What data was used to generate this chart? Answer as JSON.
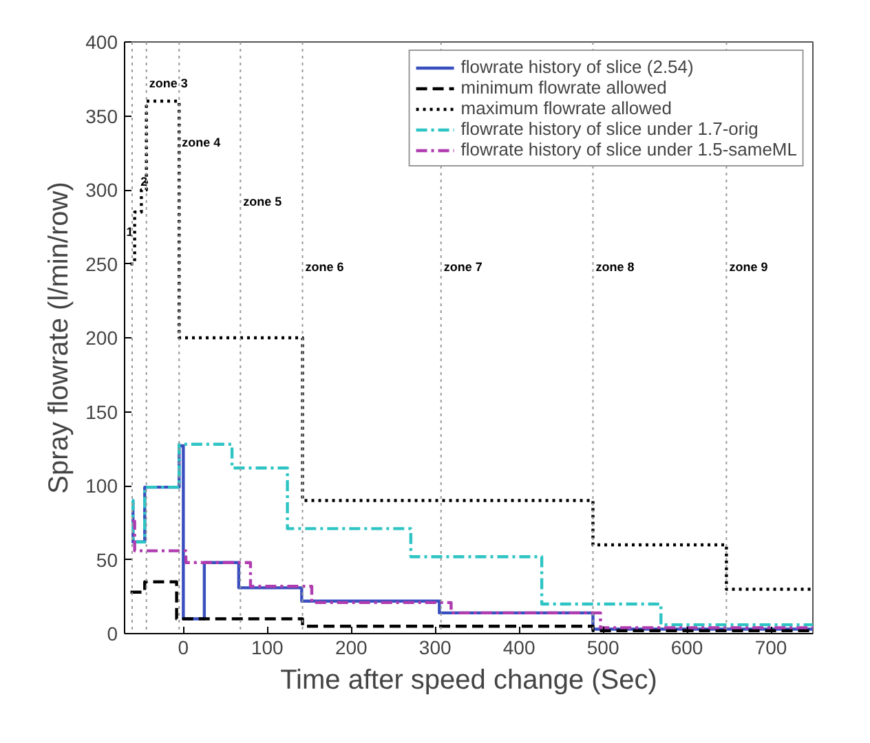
{
  "chart_data": {
    "type": "step",
    "xlabel": "Time after speed change (Sec)",
    "ylabel": "Spray flowrate (l/min/row)",
    "xlim": [
      -70,
      750
    ],
    "ylim": [
      0,
      400
    ],
    "xticks": [
      0,
      100,
      200,
      300,
      400,
      500,
      600,
      700
    ],
    "yticks": [
      0,
      50,
      100,
      150,
      200,
      250,
      300,
      350,
      400
    ],
    "grid": false,
    "legend": "top right",
    "marker": "none",
    "series": [
      {
        "name": "flowrate history of slice (2.54)",
        "color": "#3a4fbf",
        "line_style": "solid",
        "x": [
          -61,
          -60,
          -46,
          -5,
          0,
          25,
          66,
          141,
          305,
          488,
          750
        ],
        "values": [
          90,
          62,
          99,
          127,
          10,
          48,
          31,
          22,
          14,
          3,
          3
        ]
      },
      {
        "name": "minimum flowrate allowed",
        "color": "#000000",
        "line_style": "dashed",
        "x": [
          -63,
          -46,
          -8,
          142,
          488,
          750
        ],
        "values": [
          28,
          35,
          10,
          5,
          2,
          2
        ]
      },
      {
        "name": "maximum flowrate allowed",
        "color": "#000000",
        "line_style": "dotted",
        "x": [
          -63,
          -58,
          -50,
          -44,
          -5,
          142,
          488,
          647,
          750
        ],
        "values": [
          250,
          285,
          300,
          360,
          200,
          90,
          60,
          30,
          30
        ]
      },
      {
        "name": "flowrate history of slice under 1.7-orig",
        "color": "#2ec4c4",
        "line_style": "dashdot",
        "x": [
          -61,
          -60,
          -46,
          -5,
          58,
          124,
          271,
          427,
          569,
          750
        ],
        "values": [
          90,
          62,
          99,
          128,
          112,
          71,
          52,
          20,
          6,
          6
        ]
      },
      {
        "name": "flowrate history of slice under 1.5-sameML",
        "color": "#b03cb0",
        "line_style": "dashdot",
        "x": [
          -61,
          -58,
          3,
          80,
          153,
          319,
          497,
          750
        ],
        "values": [
          76,
          56,
          48,
          32,
          21,
          14,
          4,
          4
        ]
      }
    ],
    "ref_lines": [
      {
        "axis": "x",
        "value": -61,
        "color": "#999999",
        "line_style": "dotted"
      },
      {
        "axis": "x",
        "value": -44,
        "label": "zone 3",
        "color": "#999999",
        "line_style": "dotted"
      },
      {
        "axis": "x",
        "value": -5,
        "label": "zone 4",
        "color": "#999999",
        "line_style": "dotted"
      },
      {
        "axis": "x",
        "value": 68,
        "label": "zone 5",
        "color": "#999999",
        "line_style": "dotted"
      },
      {
        "axis": "x",
        "value": 142,
        "label": "zone 6",
        "color": "#999999",
        "line_style": "dotted"
      },
      {
        "axis": "x",
        "value": 307,
        "label": "zone 7",
        "color": "#999999",
        "line_style": "dotted"
      },
      {
        "axis": "x",
        "value": 488,
        "label": "zone 8",
        "color": "#999999",
        "line_style": "dotted"
      },
      {
        "axis": "x",
        "value": 647,
        "label": "zone 9",
        "color": "#999999",
        "line_style": "dotted"
      }
    ],
    "annotations": [
      {
        "text": "1",
        "x": -68,
        "y": 272
      },
      {
        "text": "2",
        "x": -51,
        "y": 306
      }
    ]
  }
}
